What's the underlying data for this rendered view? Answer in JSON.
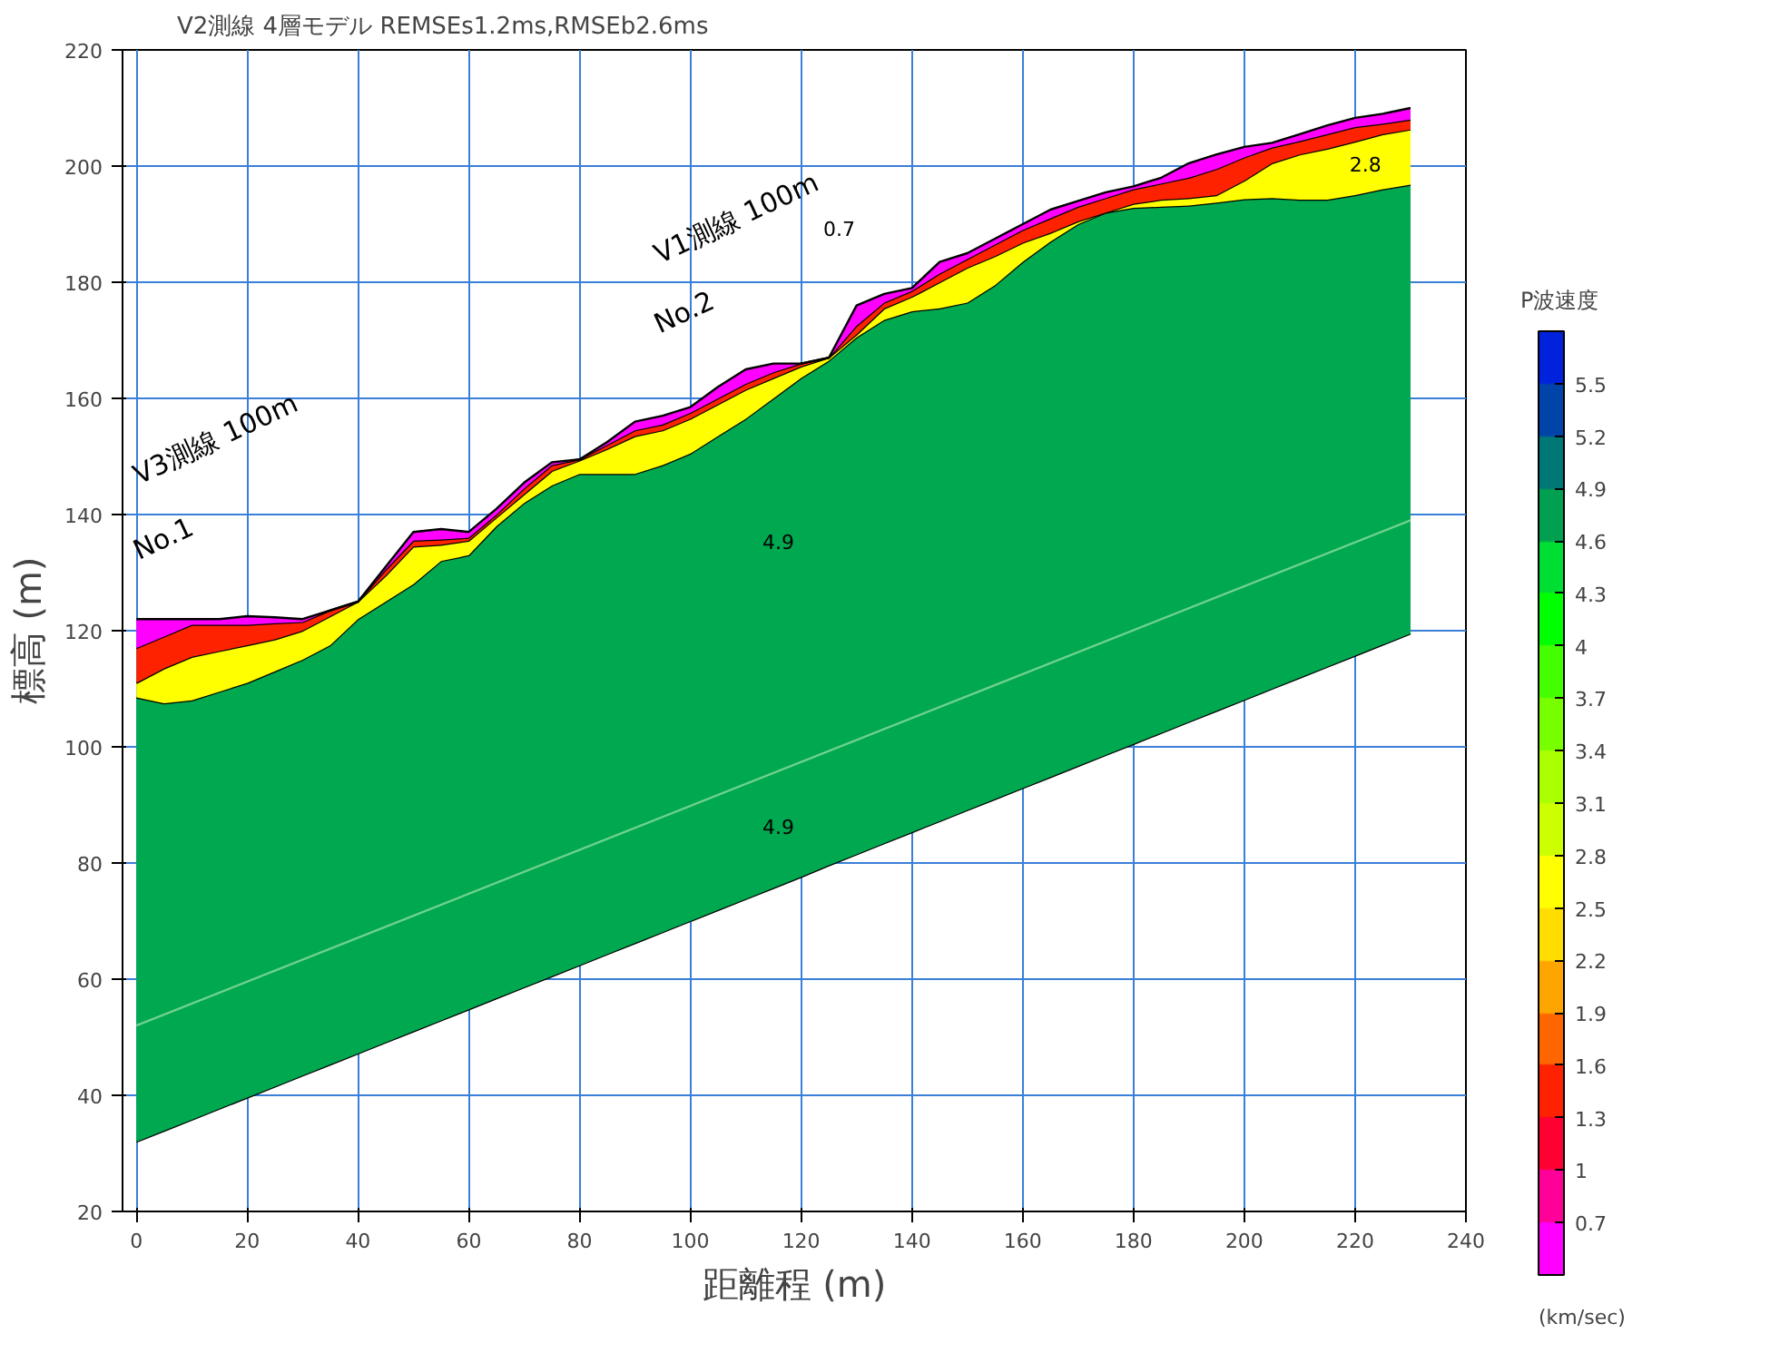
{
  "chart_data": {
    "type": "area",
    "title": "V2測線 4層モデル REMSEs1.2ms,RMSEb2.6ms",
    "xlabel": "距離程 (m)",
    "ylabel": "標高 (m)",
    "clabel": "P波速度",
    "x": [
      0,
      5,
      10,
      15,
      20,
      25,
      30,
      35,
      40,
      45,
      50,
      55,
      60,
      65,
      70,
      75,
      80,
      85,
      90,
      95,
      100,
      105,
      110,
      115,
      120,
      125,
      130,
      135,
      140,
      145,
      150,
      155,
      160,
      165,
      170,
      175,
      180,
      185,
      190,
      195,
      200,
      205,
      210,
      215,
      220,
      225,
      230
    ],
    "series": [
      {
        "type": "line",
        "color": "#000000",
        "values": [
          32,
          33.9,
          35.8,
          37.7,
          39.6,
          41.5,
          43.4,
          45.3,
          47.2,
          49.1,
          51,
          52.9,
          54.8,
          56.7,
          58.6,
          60.5,
          62.4,
          64.3,
          66.2,
          68.1,
          70,
          71.9,
          73.8,
          75.7,
          77.6,
          79.6,
          81.5,
          83.4,
          85.3,
          87.2,
          89.1,
          91,
          92.9,
          94.8,
          96.7,
          98.6,
          100.5,
          102.4,
          104.3,
          106.2,
          108.1,
          110,
          111.9,
          113.8,
          115.7,
          117.6,
          119.5
        ]
      },
      {
        "color": "#00a84f",
        "values": [
          108.5,
          107.5,
          108,
          109.5,
          111,
          113,
          115,
          117.5,
          122,
          125,
          128,
          132,
          133,
          138,
          142,
          145,
          147,
          147,
          147,
          148.5,
          150.5,
          153.5,
          156.5,
          160,
          163.5,
          166.5,
          170.5,
          173.5,
          175,
          175.5,
          176.5,
          179.5,
          183.5,
          187,
          190,
          192,
          192.8,
          193,
          193.2,
          193.7,
          194.3,
          194.5,
          194.2,
          194.2,
          195,
          196,
          196.8
        ]
      },
      {
        "color": "#ffff00",
        "values": [
          111,
          113.5,
          115.5,
          116.5,
          117.5,
          118.5,
          120,
          122.5,
          125,
          129.5,
          134.5,
          134.8,
          135.5,
          139.5,
          143.5,
          147.5,
          149.3,
          151.3,
          153.5,
          154.5,
          156.5,
          159,
          161.5,
          163.5,
          165.5,
          167,
          171,
          175.5,
          177.5,
          180,
          182.5,
          184.5,
          186.8,
          188.5,
          190.5,
          192,
          193.5,
          194.2,
          194.5,
          195,
          197.5,
          200.5,
          202,
          203,
          204.2,
          205.5,
          206.3
        ]
      },
      {
        "color": "#ff2200",
        "values": [
          117,
          119,
          121,
          121,
          121,
          121.3,
          121.5,
          123.5,
          125,
          130.5,
          135.5,
          135.7,
          136,
          140,
          144.5,
          148.5,
          149.5,
          152,
          154.5,
          155.5,
          157.5,
          160,
          162.5,
          164.5,
          166,
          167,
          172.5,
          176.5,
          178.5,
          181.5,
          184,
          186.5,
          189,
          191,
          193,
          194.5,
          196,
          197,
          198,
          199.5,
          201.5,
          203.2,
          204.3,
          205.5,
          206.7,
          207.3,
          208
        ]
      },
      {
        "color": "#ff00ff",
        "values": [
          122,
          122,
          122,
          122,
          122.5,
          122.3,
          122,
          123.5,
          125,
          131,
          137,
          137.5,
          137,
          141,
          145.5,
          149,
          149.5,
          152.5,
          156,
          157,
          158.5,
          162,
          165,
          166,
          166,
          167,
          176,
          178,
          179,
          183.5,
          185,
          187.5,
          190,
          192.5,
          194,
          195.5,
          196.5,
          198,
          200.5,
          202,
          203.3,
          204,
          205.5,
          207,
          208.3,
          209,
          210
        ]
      },
      {
        "type": "line",
        "color": "#6fd28f",
        "x": [
          0,
          230
        ],
        "values": [
          52,
          139
        ]
      }
    ],
    "xlim": [
      -2.5,
      240
    ],
    "ylim": [
      20,
      220
    ],
    "xticks": [
      0,
      20,
      40,
      60,
      80,
      100,
      120,
      140,
      160,
      180,
      200,
      220,
      240
    ],
    "yticks": [
      20,
      40,
      60,
      80,
      100,
      120,
      140,
      160,
      180,
      200,
      220
    ],
    "grid": true,
    "clim": [
      0.4,
      5.8
    ],
    "cticks": [
      0.7,
      1.0,
      1.3,
      1.6,
      1.9,
      2.2,
      2.5,
      2.8,
      3.1,
      3.4,
      3.7,
      4.0,
      4.3,
      4.6,
      4.9,
      5.2,
      5.5
    ],
    "colors": [
      "#ff00ff",
      "#ff0099",
      "#ff0033",
      "#ff2200",
      "#ff6600",
      "#ffa500",
      "#ffdd00",
      "#ffff00",
      "#ccff00",
      "#aaff00",
      "#77ff00",
      "#44ff00",
      "#00ff00",
      "#00dd33",
      "#00a050",
      "#007777",
      "#0044aa",
      "#0022dd"
    ],
    "annotations": [
      "V3測線 100m",
      "No.1",
      "V1測線 100m",
      "No.2",
      "0.7",
      "2.8",
      "4.9",
      "4.9",
      "(km/sec)"
    ]
  }
}
